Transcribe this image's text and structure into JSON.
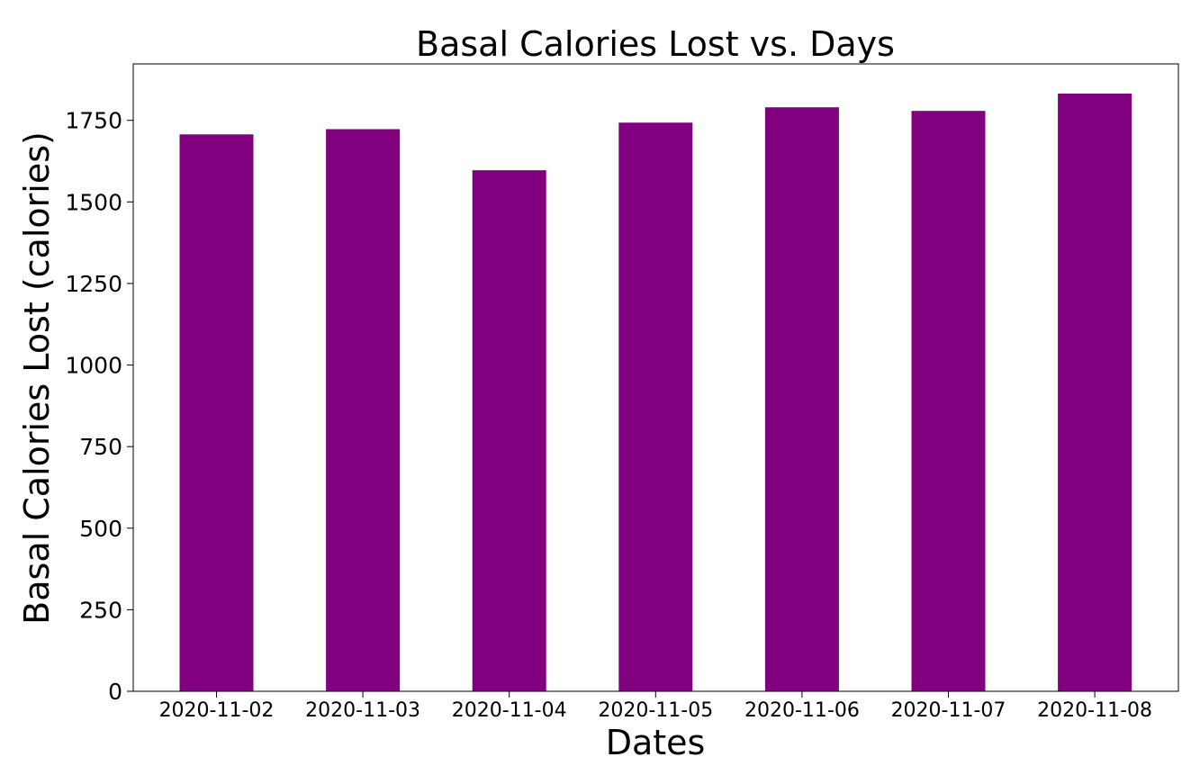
{
  "chart_data": {
    "type": "bar",
    "title": "Basal Calories Lost  vs. Days",
    "xlabel": "Dates",
    "ylabel": "Basal Calories Lost (calories)",
    "categories": [
      "2020-11-02",
      "2020-11-03",
      "2020-11-04",
      "2020-11-05",
      "2020-11-06",
      "2020-11-07",
      "2020-11-08"
    ],
    "values": [
      1707,
      1723,
      1597,
      1743,
      1790,
      1779,
      1832
    ],
    "ylim": [
      0,
      1923
    ],
    "yticks": [
      0,
      250,
      500,
      750,
      1000,
      1250,
      1500,
      1750
    ],
    "bar_color": "#800080",
    "grid": false,
    "legend": "none"
  }
}
